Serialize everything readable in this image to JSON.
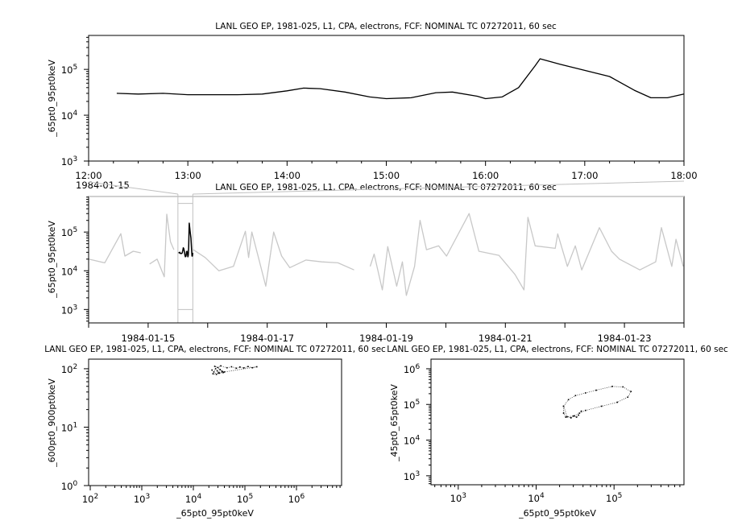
{
  "chart_data": [
    {
      "type": "line",
      "title": "LANL GEO EP, 1981-025, L1, CPA, electrons, FCF: NOMINAL TC 07272011, 60 sec",
      "xlabel": "",
      "ylabel": "_65pt0_95pt0keV",
      "date": "1984-01-15",
      "x_range": [
        "12:00",
        "18:00"
      ],
      "xticks": [
        "12:00",
        "13:00",
        "14:00",
        "15:00",
        "16:00",
        "17:00",
        "18:00"
      ],
      "yscale": "log",
      "ylim": [
        1000,
        550000
      ],
      "yticks": [
        1000,
        10000,
        100000
      ],
      "grid": false,
      "color": "#000000",
      "series": [
        {
          "x": [
            "12:17",
            "12:30",
            "12:45",
            "13:00",
            "13:15",
            "13:30",
            "13:45",
            "14:00",
            "14:10",
            "14:20",
            "14:35",
            "14:50",
            "15:00",
            "15:15",
            "15:30",
            "15:40",
            "15:55",
            "16:00",
            "16:10",
            "16:20",
            "16:30",
            "16:33",
            "16:45",
            "17:00",
            "17:15",
            "17:30",
            "17:40",
            "17:50",
            "18:00"
          ],
          "y": [
            30000,
            29000,
            30000,
            28000,
            28000,
            28000,
            29000,
            34000,
            39000,
            38000,
            32000,
            25000,
            23000,
            24000,
            31000,
            32000,
            26000,
            23000,
            25000,
            40000,
            120000,
            170000,
            130000,
            95000,
            70000,
            35000,
            24000,
            24000,
            29000
          ]
        }
      ]
    },
    {
      "type": "line",
      "title": "LANL GEO EP, 1981-025, L1, CPA, electrons, FCF: NOMINAL TC 07272011, 60 sec",
      "xlabel": "",
      "ylabel": "_65pt0_95pt0keV",
      "x_range": [
        "1984-01-14",
        "1984-01-24"
      ],
      "xticks": [
        "1984-01-15",
        "1984-01-17",
        "1984-01-19",
        "1984-01-21",
        "1984-01-23"
      ],
      "yscale": "log",
      "ylim": [
        450,
        830000
      ],
      "yticks": [
        1000,
        10000,
        100000
      ],
      "highlight_range": [
        "1984-01-15T12:00",
        "1984-01-15T18:00"
      ],
      "highlight_date_label": "1984-01-15",
      "context_color": "#c8c8c8",
      "highlight_color": "#000000",
      "series": [
        {
          "x": [
            "1984-01-14T00:00",
            "1984-01-14T06:30",
            "1984-01-14T13:00",
            "1984-01-14T14:36",
            "1984-01-14T18:00",
            "1984-01-14T21:00",
            null,
            "1984-01-15T00:36",
            "1984-01-15T03:36",
            "1984-01-15T06:30",
            "1984-01-15T07:30",
            "1984-01-15T09:00",
            "1984-01-15T10:24",
            null,
            "1984-01-15T18:12",
            "1984-01-15T23:00",
            "1984-01-16T04:30",
            "1984-01-16T10:24",
            "1984-01-16T15:12",
            "1984-01-16T16:30",
            "1984-01-16T17:48",
            "1984-01-16T20:06",
            "1984-01-16T23:24",
            "1984-01-17T02:36",
            "1984-01-17T05:48",
            "1984-01-17T09:06",
            "1984-01-17T15:36",
            "1984-01-17T22:00",
            "1984-01-18T04:30",
            "1984-01-18T11:00",
            null,
            "1984-01-18T17:30",
            "1984-01-18T19:06",
            "1984-01-18T22:24",
            "1984-01-19T00:36",
            "1984-01-19T04:12",
            "1984-01-19T06:30",
            "1984-01-19T08:06",
            "1984-01-19T11:24",
            "1984-01-19T13:36",
            "1984-01-19T16:12",
            "1984-01-19T21:06",
            "1984-01-20T00:18",
            "1984-01-20T09:24",
            "1984-01-20T13:18",
            "1984-01-20T21:24",
            "1984-01-21T03:54",
            "1984-01-21T07:30",
            "1984-01-21T09:06",
            "1984-01-21T12:00",
            "1984-01-21T20:06",
            "1984-01-21T21:06",
            "1984-01-22T01:00",
            "1984-01-22T04:12",
            "1984-01-22T06:48",
            "1984-01-22T13:54",
            "1984-01-22T18:48",
            "1984-01-22T22:00",
            "1984-01-23T06:12",
            "1984-01-23T12:36",
            "1984-01-23T14:54",
            "1984-01-23T19:06",
            "1984-01-23T20:48",
            "1984-01-23T23:42"
          ],
          "y": [
            20000,
            16000,
            91000,
            24000,
            32000,
            29000,
            null,
            15000,
            20000,
            7000,
            290000,
            56000,
            35000,
            null,
            35000,
            22000,
            10000,
            13000,
            105000,
            22000,
            100000,
            27000,
            4000,
            100000,
            24000,
            12000,
            19000,
            17000,
            16000,
            10500,
            null,
            13000,
            27000,
            3200,
            42000,
            4000,
            17000,
            2300,
            13000,
            200000,
            35000,
            44000,
            24000,
            300000,
            32000,
            25000,
            8000,
            3200,
            240000,
            44000,
            38000,
            90000,
            13000,
            44000,
            10500,
            130000,
            32000,
            20000,
            10500,
            17000,
            130000,
            13000,
            65000,
            13000
          ]
        }
      ]
    },
    {
      "type": "scatter",
      "title": "LANL GEO EP, 1981-025, L1, CPA, electrons, FCF: NOMINAL TC 07272011, 60 sec",
      "xlabel": "_65pt0_95pt0keV",
      "ylabel": "_600pt0_900pt0keV",
      "xscale": "log",
      "yscale": "log",
      "xlim": [
        93,
        7500000
      ],
      "ylim": [
        1,
        146
      ],
      "xticks": [
        100,
        1000,
        10000,
        100000,
        1000000
      ],
      "yticks": [
        1,
        10,
        100
      ],
      "x": [
        23000,
        25000,
        27000,
        29000,
        31000,
        33000,
        36000,
        40000,
        26000,
        30000,
        34000,
        45000,
        55000,
        68000,
        80000,
        95000,
        115000,
        140000,
        170000,
        24000,
        28000,
        32000,
        38000
      ],
      "y": [
        95,
        88,
        100,
        92,
        85,
        97,
        90,
        88,
        110,
        105,
        112,
        104,
        108,
        102,
        107,
        103,
        109,
        104,
        108,
        82,
        80,
        84,
        86
      ]
    },
    {
      "type": "scatter",
      "title": "LANL GEO EP, 1981-025, L1, CPA, electrons, FCF: NOMINAL TC 07272011, 60 sec",
      "xlabel": "_65pt0_95pt0keV",
      "ylabel": "_45pt0_65pt0keV",
      "xscale": "log",
      "yscale": "log",
      "xlim": [
        447,
        790000
      ],
      "ylim": [
        560,
        1860000
      ],
      "xticks": [
        1000,
        10000,
        100000
      ],
      "yticks": [
        1000,
        10000,
        100000,
        1000000
      ],
      "x": [
        22500,
        26000,
        32000,
        43000,
        59000,
        95000,
        130000,
        165000,
        150000,
        110000,
        69000,
        43000,
        36000,
        31000,
        24000,
        22500,
        22500,
        25000,
        28000,
        30000,
        33000,
        35000,
        38000
      ],
      "y": [
        89000,
        136000,
        177000,
        210000,
        250000,
        320000,
        310000,
        230000,
        160000,
        115000,
        89000,
        68000,
        57000,
        48000,
        44000,
        57000,
        89000,
        45000,
        42000,
        47000,
        44000,
        50000,
        65000
      ]
    }
  ]
}
